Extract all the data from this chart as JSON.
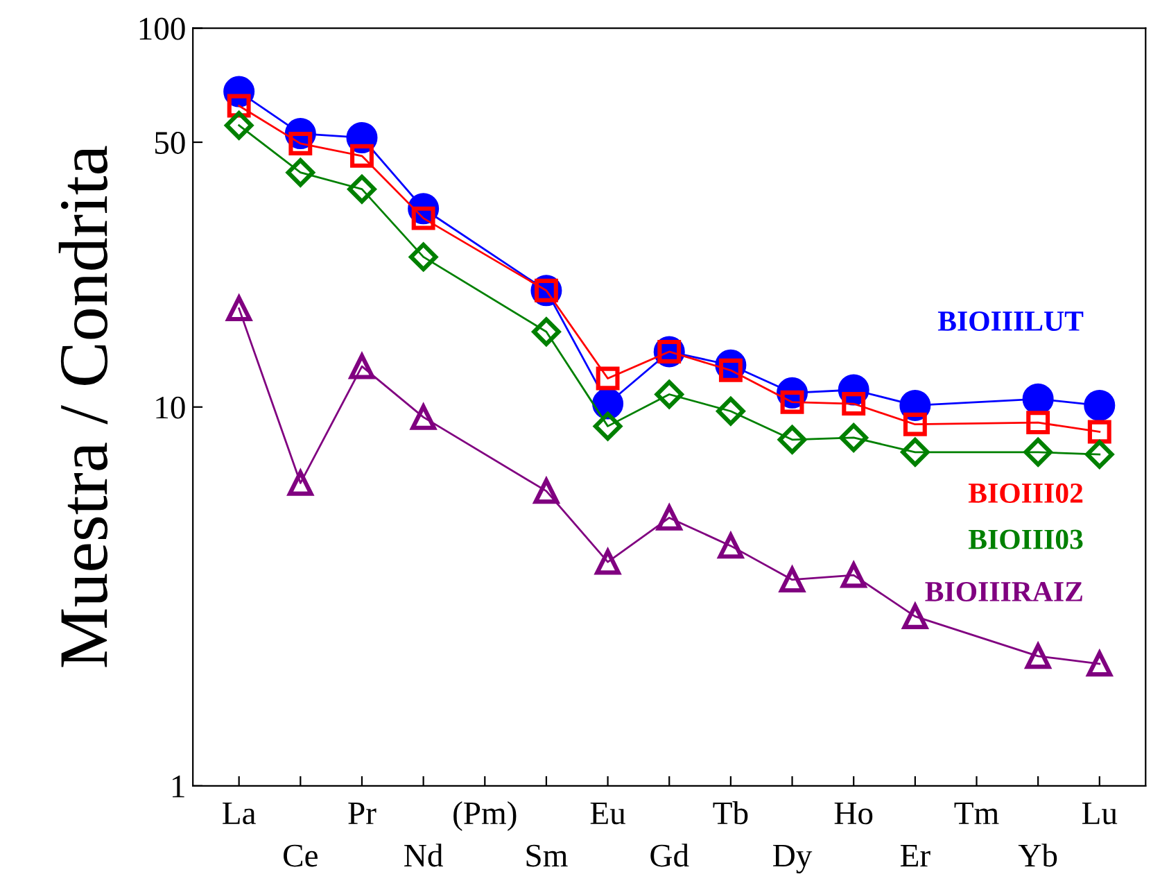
{
  "chart_data": {
    "type": "line",
    "ylabel": "Muestra / Condrita",
    "categories": [
      "La",
      "Ce",
      "Pr",
      "Nd",
      "(Pm)",
      "Sm",
      "Eu",
      "Gd",
      "Tb",
      "Dy",
      "Ho",
      "Er",
      "Tm",
      "Yb",
      "Lu"
    ],
    "series": [
      {
        "name": "BIOIIILUT",
        "color": "#0000ff",
        "marker": "circle",
        "values": [
          68,
          52.7,
          51.4,
          33.4,
          null,
          20.3,
          10.2,
          14.0,
          12.9,
          10.9,
          11.1,
          10.1,
          null,
          10.5,
          10.1
        ]
      },
      {
        "name": "BIOIII02",
        "color": "#ff0000",
        "marker": "square",
        "values": [
          62.4,
          49.6,
          46,
          31.5,
          null,
          20.3,
          11.9,
          14.0,
          12.5,
          10.3,
          10.2,
          9.0,
          null,
          9.1,
          8.6
        ]
      },
      {
        "name": "BIOIII03",
        "color": "#008000",
        "marker": "diamond",
        "values": [
          55.4,
          41.6,
          37.6,
          24.9,
          null,
          15.8,
          8.9,
          10.8,
          9.75,
          8.2,
          8.3,
          7.6,
          null,
          7.6,
          7.5
        ]
      },
      {
        "name": "BIOIIIRAIZ",
        "color": "#800080",
        "marker": "triangle",
        "values": [
          18.2,
          6.3,
          12.8,
          9.4,
          null,
          6.0,
          3.9,
          5.1,
          4.3,
          3.5,
          3.6,
          2.8,
          null,
          2.2,
          2.1
        ]
      }
    ],
    "log": true,
    "ylim": [
      1,
      100
    ],
    "yticks": [
      1,
      10,
      50,
      100
    ],
    "grid": false,
    "legend": "right"
  }
}
